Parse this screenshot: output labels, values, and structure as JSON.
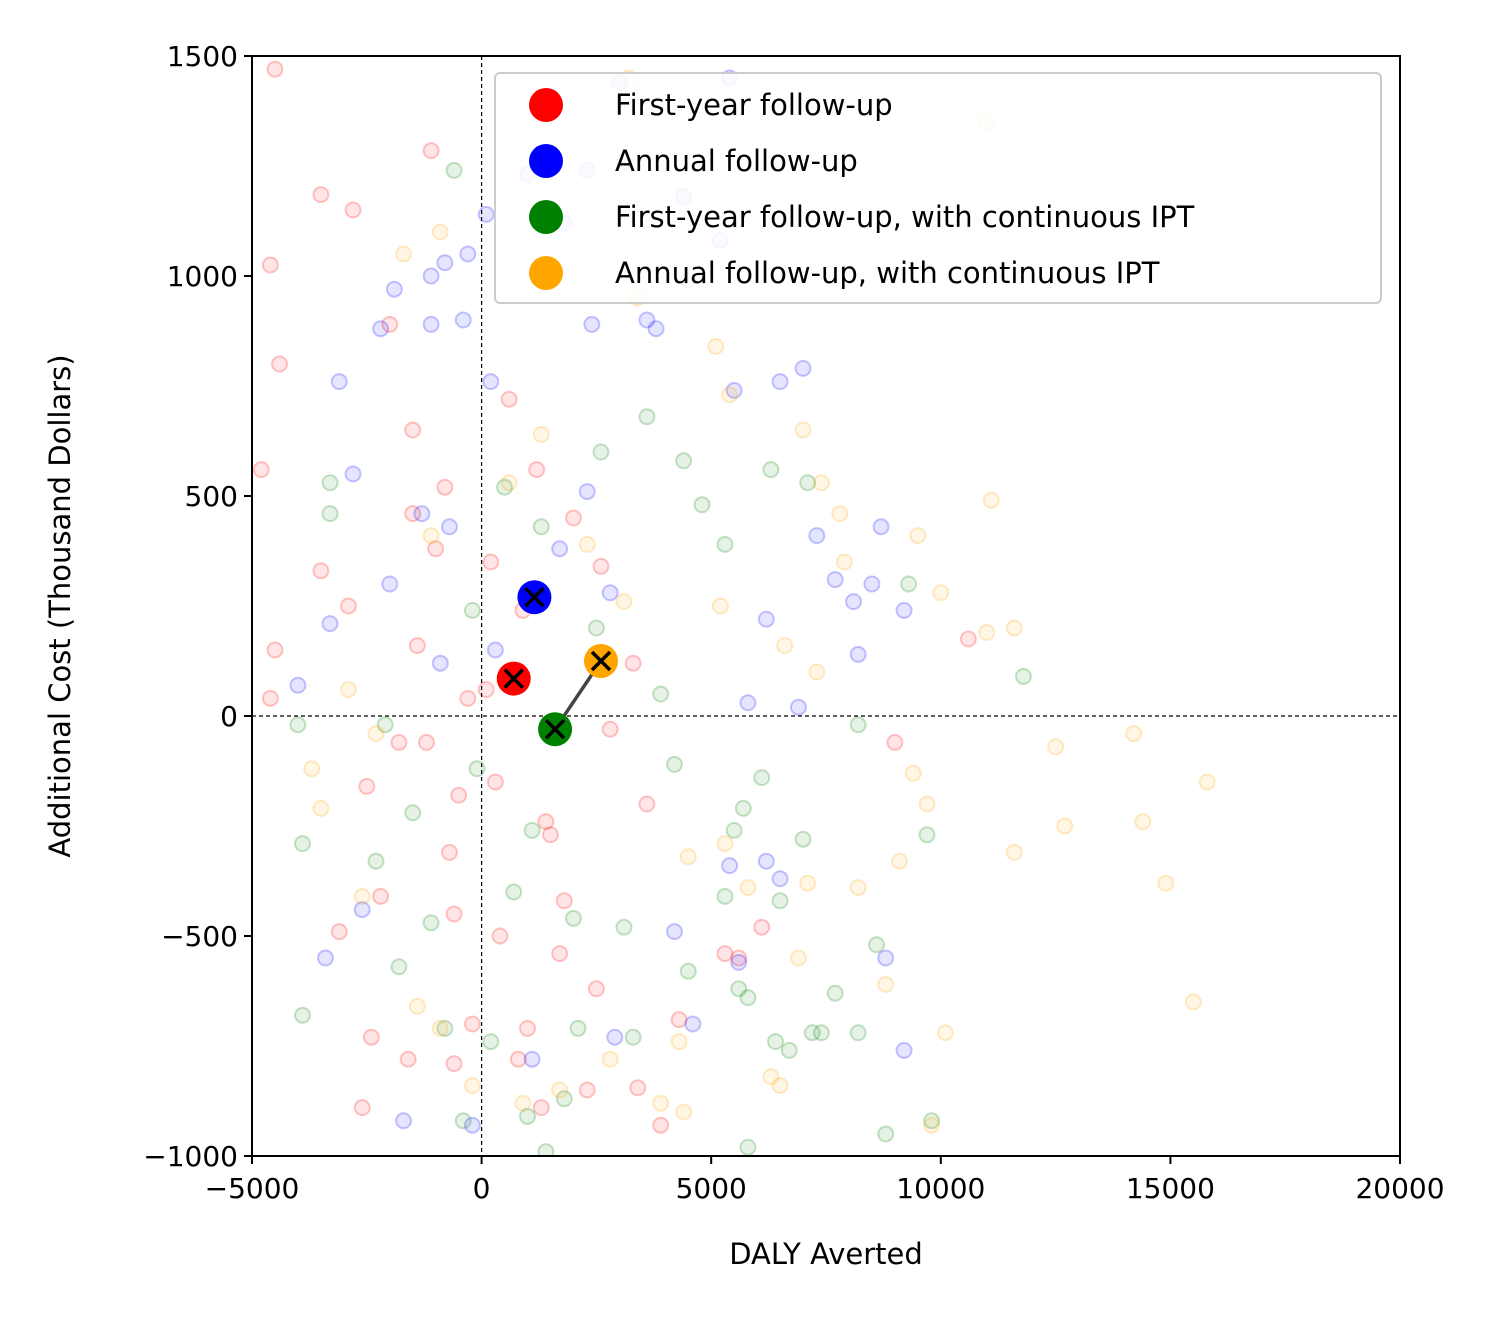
{
  "chart_data": {
    "type": "scatter",
    "xlabel": "DALY Averted",
    "ylabel": "Additional Cost (Thousand Dollars)",
    "xlim": [
      -5000,
      20000
    ],
    "ylim": [
      -1000,
      1500
    ],
    "xticks": [
      -5000,
      0,
      5000,
      10000,
      15000,
      20000
    ],
    "xtick_labels": [
      "−5000",
      "0",
      "5000",
      "10000",
      "15000",
      "20000"
    ],
    "yticks": [
      -1000,
      -500,
      0,
      500,
      1000,
      1500
    ],
    "ytick_labels": [
      "−1000",
      "−500",
      "0",
      "500",
      "1000",
      "1500"
    ],
    "grid": false,
    "reference_lines": {
      "x": 0,
      "y": 0,
      "style": "dashed"
    },
    "legend_position": "top-right",
    "series": [
      {
        "name": "First-year follow-up",
        "color": "#ff0000",
        "mean": [
          700,
          85
        ],
        "samples": [
          [
            -4500,
            1470
          ],
          [
            -4600,
            1025
          ],
          [
            -3500,
            1185
          ],
          [
            -2800,
            1150
          ],
          [
            -1100,
            1285
          ],
          [
            -4400,
            800
          ],
          [
            -4800,
            560
          ],
          [
            -4500,
            150
          ],
          [
            -4600,
            40
          ],
          [
            -3500,
            330
          ],
          [
            -2000,
            890
          ],
          [
            -1500,
            650
          ],
          [
            -3100,
            -490
          ],
          [
            -2600,
            -890
          ],
          [
            -2400,
            -730
          ],
          [
            -1600,
            -780
          ],
          [
            -600,
            -790
          ],
          [
            -200,
            -700
          ],
          [
            1000,
            -710
          ],
          [
            1300,
            -890
          ],
          [
            2300,
            -850
          ],
          [
            3400,
            -845
          ],
          [
            3900,
            -930
          ],
          [
            5300,
            -540
          ],
          [
            5600,
            -550
          ],
          [
            2500,
            -620
          ],
          [
            1700,
            -540
          ],
          [
            -700,
            -310
          ],
          [
            -2200,
            -410
          ],
          [
            -1400,
            160
          ],
          [
            600,
            720
          ],
          [
            1200,
            560
          ],
          [
            2000,
            450
          ],
          [
            9000,
            -60
          ],
          [
            10600,
            175
          ],
          [
            6100,
            -480
          ],
          [
            4300,
            -690
          ],
          [
            -300,
            40
          ],
          [
            300,
            -150
          ],
          [
            900,
            240
          ],
          [
            1500,
            -270
          ],
          [
            -1000,
            380
          ],
          [
            -2500,
            -160
          ],
          [
            -1800,
            -60
          ],
          [
            2800,
            -30
          ],
          [
            3300,
            120
          ],
          [
            -600,
            -450
          ],
          [
            -1200,
            -60
          ],
          [
            100,
            60
          ],
          [
            1800,
            -420
          ],
          [
            400,
            -500
          ],
          [
            -800,
            520
          ],
          [
            2600,
            340
          ],
          [
            3600,
            -200
          ],
          [
            -1500,
            460
          ],
          [
            -2900,
            250
          ],
          [
            800,
            -780
          ],
          [
            1400,
            -240
          ],
          [
            200,
            350
          ],
          [
            -500,
            -180
          ]
        ]
      },
      {
        "name": "Annual follow-up",
        "color": "#0000ff",
        "mean": [
          1150,
          270
        ],
        "samples": [
          [
            5400,
            1450
          ],
          [
            3000,
            1440
          ],
          [
            4400,
            1180
          ],
          [
            3100,
            1260
          ],
          [
            2300,
            1240
          ],
          [
            1800,
            1120
          ],
          [
            100,
            1140
          ],
          [
            -300,
            1050
          ],
          [
            1000,
            1230
          ],
          [
            -1900,
            970
          ],
          [
            -1100,
            1000
          ],
          [
            -800,
            1030
          ],
          [
            4500,
            990
          ],
          [
            5200,
            1080
          ],
          [
            3600,
            900
          ],
          [
            6500,
            760
          ],
          [
            7000,
            790
          ],
          [
            7300,
            410
          ],
          [
            7700,
            310
          ],
          [
            8100,
            260
          ],
          [
            8200,
            140
          ],
          [
            8500,
            300
          ],
          [
            8700,
            430
          ],
          [
            9200,
            240
          ],
          [
            9200,
            -760
          ],
          [
            8800,
            -550
          ],
          [
            6500,
            -370
          ],
          [
            5600,
            -560
          ],
          [
            4600,
            -700
          ],
          [
            2900,
            -730
          ],
          [
            1100,
            -780
          ],
          [
            -200,
            -930
          ],
          [
            -1700,
            -920
          ],
          [
            -2600,
            -440
          ],
          [
            -3400,
            -550
          ],
          [
            -4000,
            70
          ],
          [
            -3300,
            210
          ],
          [
            -2800,
            550
          ],
          [
            -3100,
            760
          ],
          [
            -2200,
            880
          ],
          [
            -1100,
            890
          ],
          [
            -400,
            900
          ],
          [
            200,
            760
          ],
          [
            2400,
            890
          ],
          [
            3800,
            880
          ],
          [
            5500,
            740
          ],
          [
            6200,
            220
          ],
          [
            5800,
            30
          ],
          [
            6900,
            20
          ],
          [
            6200,
            -330
          ],
          [
            5400,
            -340
          ],
          [
            4200,
            -490
          ],
          [
            -1300,
            460
          ],
          [
            -700,
            430
          ],
          [
            1700,
            380
          ],
          [
            2300,
            510
          ],
          [
            -2000,
            300
          ],
          [
            300,
            150
          ],
          [
            -900,
            120
          ],
          [
            2800,
            280
          ]
        ]
      },
      {
        "name": "First-year follow-up, with continuous IPT",
        "color": "#008000",
        "mean": [
          1600,
          -30
        ],
        "samples": [
          [
            -600,
            1240
          ],
          [
            -3300,
            530
          ],
          [
            -3300,
            460
          ],
          [
            -4000,
            -20
          ],
          [
            -3900,
            -290
          ],
          [
            -3900,
            -680
          ],
          [
            -1800,
            -570
          ],
          [
            -800,
            -710
          ],
          [
            -400,
            -920
          ],
          [
            200,
            -740
          ],
          [
            1000,
            -910
          ],
          [
            1400,
            -990
          ],
          [
            2100,
            -710
          ],
          [
            1800,
            -870
          ],
          [
            3300,
            -730
          ],
          [
            4500,
            -580
          ],
          [
            5300,
            -410
          ],
          [
            5600,
            -620
          ],
          [
            5800,
            -640
          ],
          [
            5800,
            -980
          ],
          [
            6400,
            -740
          ],
          [
            6700,
            -760
          ],
          [
            7200,
            -720
          ],
          [
            7400,
            -720
          ],
          [
            7700,
            -630
          ],
          [
            8200,
            -720
          ],
          [
            8600,
            -520
          ],
          [
            8800,
            -950
          ],
          [
            9800,
            -920
          ],
          [
            9700,
            -270
          ],
          [
            9300,
            300
          ],
          [
            11800,
            90
          ],
          [
            8200,
            -20
          ],
          [
            7100,
            530
          ],
          [
            6300,
            560
          ],
          [
            4800,
            480
          ],
          [
            5300,
            390
          ],
          [
            3600,
            680
          ],
          [
            2600,
            600
          ],
          [
            4400,
            580
          ],
          [
            6100,
            -140
          ],
          [
            5500,
            -260
          ],
          [
            7000,
            -280
          ],
          [
            6500,
            -420
          ],
          [
            5700,
            -210
          ],
          [
            3100,
            -480
          ],
          [
            2000,
            -460
          ],
          [
            700,
            -400
          ],
          [
            -1100,
            -470
          ],
          [
            -1500,
            -220
          ],
          [
            -2300,
            -330
          ],
          [
            -2100,
            -20
          ],
          [
            -200,
            240
          ],
          [
            500,
            520
          ],
          [
            1300,
            430
          ],
          [
            2500,
            200
          ],
          [
            3900,
            50
          ],
          [
            4200,
            -110
          ],
          [
            -100,
            -120
          ],
          [
            1100,
            -260
          ]
        ]
      },
      {
        "name": "Annual follow-up, with continuous IPT",
        "color": "#ffa500",
        "mean": [
          2600,
          125
        ],
        "samples": [
          [
            -900,
            1100
          ],
          [
            -1700,
            1050
          ],
          [
            3200,
            1450
          ],
          [
            11000,
            1350
          ],
          [
            3400,
            950
          ],
          [
            5100,
            840
          ],
          [
            5400,
            730
          ],
          [
            7000,
            650
          ],
          [
            7400,
            530
          ],
          [
            7800,
            460
          ],
          [
            7900,
            350
          ],
          [
            9500,
            410
          ],
          [
            10000,
            280
          ],
          [
            11100,
            490
          ],
          [
            11000,
            190
          ],
          [
            11600,
            200
          ],
          [
            9400,
            -130
          ],
          [
            9700,
            -200
          ],
          [
            12500,
            -70
          ],
          [
            12700,
            -250
          ],
          [
            14200,
            -40
          ],
          [
            14400,
            -240
          ],
          [
            15800,
            -150
          ],
          [
            14900,
            -380
          ],
          [
            15500,
            -650
          ],
          [
            11600,
            -310
          ],
          [
            10100,
            -720
          ],
          [
            9800,
            -930
          ],
          [
            9100,
            -330
          ],
          [
            8800,
            -610
          ],
          [
            8200,
            -390
          ],
          [
            7100,
            -380
          ],
          [
            6900,
            -550
          ],
          [
            6500,
            -840
          ],
          [
            6300,
            -820
          ],
          [
            5800,
            -390
          ],
          [
            5300,
            -290
          ],
          [
            4500,
            -320
          ],
          [
            4400,
            -900
          ],
          [
            3900,
            -880
          ],
          [
            4300,
            -740
          ],
          [
            2800,
            -780
          ],
          [
            1700,
            -850
          ],
          [
            900,
            -880
          ],
          [
            -200,
            -840
          ],
          [
            -900,
            -710
          ],
          [
            -1400,
            -660
          ],
          [
            -2600,
            -410
          ],
          [
            -3700,
            -120
          ],
          [
            -3500,
            -210
          ],
          [
            -2300,
            -40
          ],
          [
            -2900,
            60
          ],
          [
            -1100,
            410
          ],
          [
            600,
            530
          ],
          [
            1300,
            640
          ],
          [
            2300,
            390
          ],
          [
            3100,
            260
          ],
          [
            5200,
            250
          ],
          [
            6600,
            160
          ],
          [
            7300,
            100
          ]
        ]
      }
    ]
  }
}
